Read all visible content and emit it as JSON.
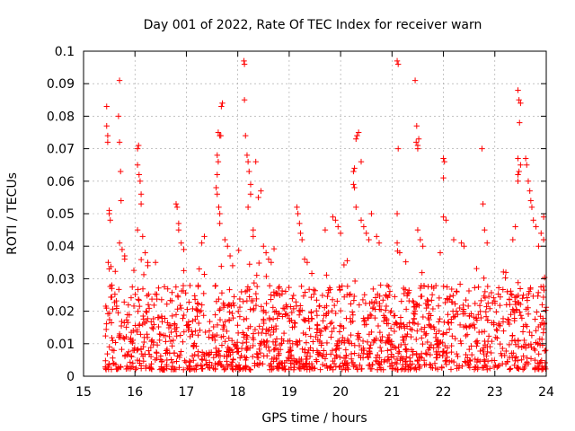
{
  "chart_data": {
    "type": "scatter",
    "title": "Day 001 of 2022, Rate Of TEC Index for receiver warn",
    "xlabel": "GPS time / hours",
    "ylabel": "ROTI / TECUs",
    "xlim": [
      15,
      24
    ],
    "ylim": [
      0,
      0.1
    ],
    "xticks": [
      "15",
      "16",
      "17",
      "18",
      "19",
      "20",
      "21",
      "22",
      "23",
      "24"
    ],
    "yticks": [
      "0",
      "0.01",
      "0.02",
      "0.03",
      "0.04",
      "0.05",
      "0.06",
      "0.07",
      "0.08",
      "0.09",
      "0.1"
    ],
    "marker": "+",
    "color": "#ff0000",
    "grid": true,
    "series": [
      {
        "name": "ROTI",
        "points": [
          [
            15.45,
            0.083
          ],
          [
            15.45,
            0.077
          ],
          [
            15.47,
            0.074
          ],
          [
            15.47,
            0.072
          ],
          [
            15.5,
            0.051
          ],
          [
            15.5,
            0.05
          ],
          [
            15.52,
            0.048
          ],
          [
            15.48,
            0.035
          ],
          [
            15.5,
            0.033
          ],
          [
            15.55,
            0.028
          ],
          [
            15.55,
            0.027
          ],
          [
            15.7,
            0.091
          ],
          [
            15.68,
            0.08
          ],
          [
            15.7,
            0.072
          ],
          [
            15.72,
            0.063
          ],
          [
            15.73,
            0.054
          ],
          [
            15.7,
            0.041
          ],
          [
            15.75,
            0.039
          ],
          [
            15.8,
            0.036
          ],
          [
            15.8,
            0.037
          ],
          [
            16.05,
            0.07
          ],
          [
            16.07,
            0.071
          ],
          [
            16.05,
            0.065
          ],
          [
            16.08,
            0.062
          ],
          [
            16.1,
            0.06
          ],
          [
            16.12,
            0.056
          ],
          [
            16.12,
            0.053
          ],
          [
            16.05,
            0.045
          ],
          [
            16.15,
            0.043
          ],
          [
            16.2,
            0.038
          ],
          [
            16.25,
            0.035
          ],
          [
            16.25,
            0.034
          ],
          [
            16.4,
            0.035
          ],
          [
            16.8,
            0.053
          ],
          [
            16.82,
            0.052
          ],
          [
            16.85,
            0.047
          ],
          [
            16.85,
            0.045
          ],
          [
            16.9,
            0.041
          ],
          [
            16.95,
            0.039
          ],
          [
            17.35,
            0.043
          ],
          [
            17.3,
            0.041
          ],
          [
            17.25,
            0.033
          ],
          [
            17.62,
            0.075
          ],
          [
            17.65,
            0.074
          ],
          [
            17.67,
            0.074
          ],
          [
            17.68,
            0.083
          ],
          [
            17.7,
            0.084
          ],
          [
            17.6,
            0.068
          ],
          [
            17.62,
            0.066
          ],
          [
            17.6,
            0.062
          ],
          [
            17.58,
            0.058
          ],
          [
            17.6,
            0.056
          ],
          [
            17.63,
            0.052
          ],
          [
            17.65,
            0.05
          ],
          [
            17.65,
            0.047
          ],
          [
            17.75,
            0.042
          ],
          [
            17.8,
            0.04
          ],
          [
            17.85,
            0.037
          ],
          [
            17.9,
            0.034
          ],
          [
            18.12,
            0.097
          ],
          [
            18.13,
            0.096
          ],
          [
            18.13,
            0.085
          ],
          [
            18.15,
            0.074
          ],
          [
            18.18,
            0.068
          ],
          [
            18.2,
            0.066
          ],
          [
            18.22,
            0.063
          ],
          [
            18.25,
            0.059
          ],
          [
            18.25,
            0.056
          ],
          [
            18.2,
            0.052
          ],
          [
            18.3,
            0.045
          ],
          [
            18.3,
            0.043
          ],
          [
            18.35,
            0.066
          ],
          [
            18.45,
            0.057
          ],
          [
            18.4,
            0.055
          ],
          [
            18.5,
            0.04
          ],
          [
            18.55,
            0.038
          ],
          [
            18.6,
            0.036
          ],
          [
            18.65,
            0.035
          ],
          [
            19.15,
            0.052
          ],
          [
            19.17,
            0.05
          ],
          [
            19.2,
            0.047
          ],
          [
            19.22,
            0.044
          ],
          [
            19.25,
            0.042
          ],
          [
            19.3,
            0.036
          ],
          [
            19.35,
            0.035
          ],
          [
            19.7,
            0.045
          ],
          [
            19.85,
            0.049
          ],
          [
            19.9,
            0.048
          ],
          [
            19.95,
            0.046
          ],
          [
            20.0,
            0.044
          ],
          [
            20.25,
            0.063
          ],
          [
            20.27,
            0.064
          ],
          [
            20.3,
            0.073
          ],
          [
            20.32,
            0.074
          ],
          [
            20.35,
            0.075
          ],
          [
            20.4,
            0.066
          ],
          [
            20.25,
            0.059
          ],
          [
            20.27,
            0.058
          ],
          [
            20.3,
            0.052
          ],
          [
            20.4,
            0.048
          ],
          [
            20.45,
            0.046
          ],
          [
            20.5,
            0.044
          ],
          [
            20.55,
            0.042
          ],
          [
            20.6,
            0.05
          ],
          [
            20.7,
            0.043
          ],
          [
            20.75,
            0.041
          ],
          [
            21.1,
            0.097
          ],
          [
            21.12,
            0.096
          ],
          [
            21.12,
            0.07
          ],
          [
            21.1,
            0.05
          ],
          [
            21.1,
            0.041
          ],
          [
            21.15,
            0.038
          ],
          [
            21.45,
            0.091
          ],
          [
            21.48,
            0.077
          ],
          [
            21.47,
            0.072
          ],
          [
            21.5,
            0.071
          ],
          [
            21.5,
            0.07
          ],
          [
            21.52,
            0.073
          ],
          [
            21.5,
            0.045
          ],
          [
            21.55,
            0.042
          ],
          [
            21.6,
            0.04
          ],
          [
            22.0,
            0.067
          ],
          [
            22.02,
            0.066
          ],
          [
            22.0,
            0.061
          ],
          [
            22.0,
            0.049
          ],
          [
            22.05,
            0.048
          ],
          [
            22.2,
            0.042
          ],
          [
            22.35,
            0.041
          ],
          [
            22.4,
            0.04
          ],
          [
            22.75,
            0.07
          ],
          [
            22.77,
            0.053
          ],
          [
            22.8,
            0.045
          ],
          [
            22.85,
            0.041
          ],
          [
            23.45,
            0.088
          ],
          [
            23.47,
            0.085
          ],
          [
            23.5,
            0.084
          ],
          [
            23.48,
            0.078
          ],
          [
            23.45,
            0.067
          ],
          [
            23.5,
            0.065
          ],
          [
            23.47,
            0.063
          ],
          [
            23.45,
            0.062
          ],
          [
            23.45,
            0.06
          ],
          [
            23.6,
            0.067
          ],
          [
            23.62,
            0.065
          ],
          [
            23.65,
            0.06
          ],
          [
            23.68,
            0.057
          ],
          [
            23.7,
            0.054
          ],
          [
            23.72,
            0.052
          ],
          [
            23.75,
            0.048
          ],
          [
            23.8,
            0.046
          ],
          [
            23.9,
            0.044
          ],
          [
            23.95,
            0.049
          ],
          [
            23.95,
            0.042
          ],
          [
            23.85,
            0.04
          ],
          [
            23.4,
            0.046
          ],
          [
            23.35,
            0.042
          ]
        ]
      }
    ],
    "dense_band": {
      "description": "dense cloud of ROTI values spanning the observation window",
      "x_start": 15.42,
      "x_end": 24.0,
      "typical_range": [
        0.002,
        0.028
      ],
      "count": 1600,
      "seed": 7
    }
  }
}
